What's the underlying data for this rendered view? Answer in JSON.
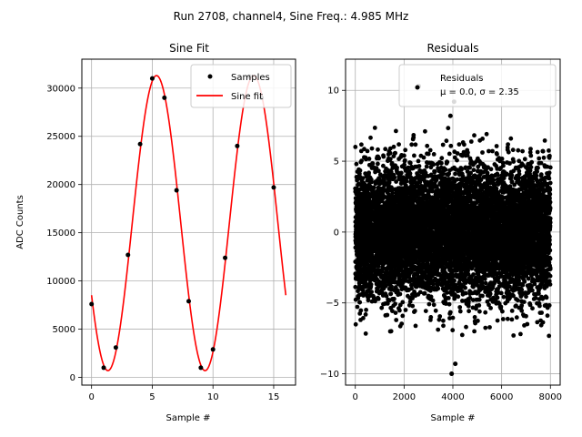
{
  "suptitle": "Run 2708, channel4, Sine Freq.: 4.985 MHz",
  "chart_data": [
    {
      "type": "line",
      "title": "Sine Fit",
      "xlabel": "Sample #",
      "ylabel": "ADC Counts",
      "xlim": [
        -0.8,
        16.8
      ],
      "ylim": [
        -800,
        33000
      ],
      "xticks": [
        0,
        5,
        10,
        15
      ],
      "yticks": [
        0,
        5000,
        10000,
        15000,
        20000,
        25000,
        30000
      ],
      "grid": true,
      "legend": "top-right",
      "series": [
        {
          "name": "Samples",
          "kind": "scatter",
          "color": "#000000",
          "x": [
            0,
            1,
            2,
            3,
            4,
            5,
            6,
            7,
            8,
            9,
            10,
            11,
            12,
            13,
            14,
            15
          ],
          "y": [
            7600,
            1000,
            3100,
            12700,
            24200,
            31000,
            29000,
            19400,
            7900,
            1000,
            2900,
            12400,
            24000,
            31200,
            29000,
            19700
          ]
        },
        {
          "name": "Sine fit",
          "kind": "line",
          "color": "#ff0000",
          "function": {
            "offset": 16000,
            "amplitude": 15300,
            "period": 8.0,
            "peak_at": 5.35,
            "x_start": 0,
            "x_end": 16
          }
        }
      ]
    },
    {
      "type": "scatter",
      "title": "Residuals",
      "xlabel": "Sample #",
      "xlim": [
        -400,
        8400
      ],
      "ylim": [
        -10.8,
        12.2
      ],
      "xticks": [
        0,
        2000,
        4000,
        6000,
        8000
      ],
      "yticks": [
        -10,
        -5,
        0,
        5,
        10
      ],
      "grid": true,
      "legend": "top-right",
      "series": [
        {
          "name": "Residuals",
          "legend_label": "Residuals\nμ = 0.0, σ = 2.35",
          "color": "#000000",
          "mean": 0.0,
          "sigma": 2.35,
          "n_points": 8000,
          "x_range": [
            0,
            8000
          ],
          "notable_points": [
            {
              "x": 3950,
              "y": -10.0
            },
            {
              "x": 4100,
              "y": -9.3
            },
            {
              "x": 3900,
              "y": 8.2
            },
            {
              "x": 4050,
              "y": 9.2
            },
            {
              "x": 2600,
              "y": 10.3
            }
          ]
        }
      ]
    }
  ]
}
